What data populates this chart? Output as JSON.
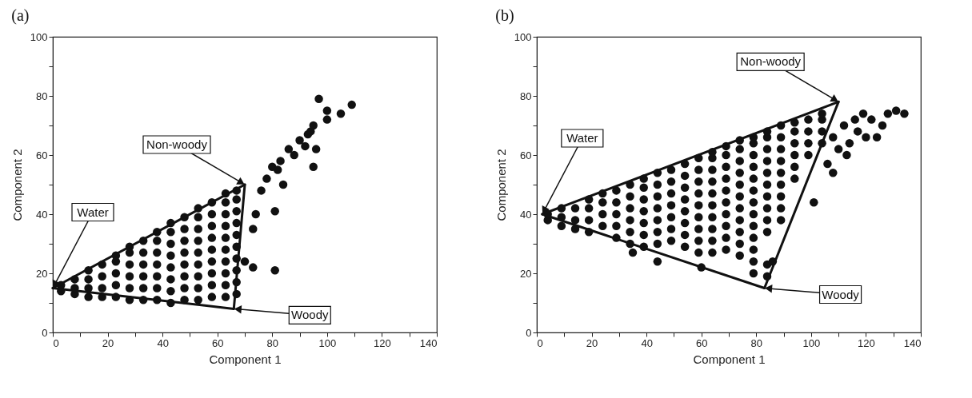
{
  "chart_data": [
    {
      "type": "scatter",
      "title": "(a)",
      "xlabel": "Component 1",
      "ylabel": "Component 2",
      "xlim": [
        0,
        140
      ],
      "ylim": [
        0,
        100
      ],
      "xticks": [
        0,
        {
          "value": 10,
          "label": null
        },
        20,
        {
          "value": 30,
          "label": null
        },
        40,
        {
          "value": 50,
          "label": null
        },
        60,
        {
          "value": 70,
          "label": null
        },
        80,
        {
          "value": 90,
          "label": null
        },
        100,
        {
          "value": 110,
          "label": null
        },
        120,
        {
          "value": 130,
          "label": null
        },
        140
      ],
      "yticks": [
        0,
        {
          "value": 10,
          "label": null
        },
        20,
        {
          "value": 30,
          "label": null
        },
        40,
        {
          "value": 50,
          "label": null
        },
        60,
        {
          "value": 70,
          "label": null
        },
        80,
        {
          "value": 90,
          "label": null
        },
        100
      ],
      "marker": "circle",
      "grid": false,
      "series": [
        {
          "color": "#111111",
          "x": [
            3,
            3,
            8,
            8,
            8,
            13,
            13,
            13,
            13,
            18,
            18,
            18,
            18,
            23,
            23,
            23,
            23,
            23,
            28,
            28,
            28,
            28,
            28,
            28,
            33,
            33,
            33,
            33,
            33,
            33,
            38,
            38,
            38,
            38,
            38,
            38,
            38,
            43,
            43,
            43,
            43,
            43,
            43,
            43,
            43,
            48,
            48,
            48,
            48,
            48,
            48,
            48,
            48,
            53,
            53,
            53,
            53,
            53,
            53,
            53,
            53,
            53,
            58,
            58,
            58,
            58,
            58,
            58,
            58,
            58,
            58,
            63,
            63,
            63,
            63,
            63,
            63,
            63,
            63,
            63,
            63,
            67,
            67,
            67,
            67,
            67,
            67,
            67,
            67,
            67,
            67,
            74,
            73,
            76,
            78,
            80,
            82,
            83,
            84,
            81,
            86,
            88,
            90,
            92,
            93,
            94,
            95,
            96,
            95,
            97,
            100,
            100,
            105,
            109,
            73,
            81,
            70
          ],
          "values": [
            14,
            16,
            13,
            15,
            18,
            12,
            15,
            18,
            21,
            12,
            15,
            19,
            23,
            12,
            16,
            20,
            24,
            26,
            11,
            15,
            19,
            23,
            27,
            29,
            11,
            15,
            19,
            23,
            27,
            31,
            11,
            15,
            19,
            23,
            27,
            31,
            34,
            10,
            14,
            18,
            22,
            26,
            30,
            34,
            37,
            11,
            15,
            19,
            23,
            27,
            31,
            35,
            39,
            11,
            15,
            19,
            23,
            27,
            31,
            35,
            39,
            42,
            12,
            16,
            20,
            24,
            28,
            32,
            36,
            40,
            44,
            12,
            16,
            20,
            24,
            28,
            32,
            36,
            40,
            44,
            47,
            13,
            17,
            21,
            25,
            29,
            33,
            37,
            41,
            45,
            48,
            40,
            35,
            48,
            52,
            56,
            55,
            58,
            50,
            41,
            62,
            60,
            65,
            63,
            67,
            68,
            70,
            62,
            56,
            79,
            72,
            75,
            74,
            77,
            22,
            21,
            24
          ]
        },
        {
          "type": "line",
          "marker": "none",
          "color": "#111111",
          "x": [
            0,
            70
          ],
          "values": [
            15,
            50
          ]
        },
        {
          "type": "line",
          "marker": "none",
          "color": "#111111",
          "x": [
            0,
            66
          ],
          "values": [
            15,
            8
          ]
        },
        {
          "type": "line",
          "marker": "none",
          "color": "#111111",
          "x": [
            66,
            70
          ],
          "values": [
            8,
            50
          ]
        }
      ],
      "annotations": [
        {
          "text": "Water",
          "x": 0,
          "y": 15
        },
        {
          "text": "Non-woody",
          "x": 70,
          "y": 50
        },
        {
          "text": "Woody",
          "x": 66,
          "y": 8
        }
      ]
    },
    {
      "type": "scatter",
      "title": "(b)",
      "xlabel": "Component 1",
      "ylabel": "Component 2",
      "xlim": [
        0,
        140
      ],
      "ylim": [
        0,
        100
      ],
      "xticks": [
        0,
        {
          "value": 10,
          "label": null
        },
        20,
        {
          "value": 30,
          "label": null
        },
        40,
        {
          "value": 50,
          "label": null
        },
        60,
        {
          "value": 70,
          "label": null
        },
        80,
        {
          "value": 90,
          "label": null
        },
        100,
        {
          "value": 110,
          "label": null
        },
        120,
        {
          "value": 130,
          "label": null
        },
        140
      ],
      "yticks": [
        0,
        {
          "value": 10,
          "label": null
        },
        20,
        {
          "value": 30,
          "label": null
        },
        40,
        {
          "value": 50,
          "label": null
        },
        60,
        {
          "value": 70,
          "label": null
        },
        80,
        {
          "value": 90,
          "label": null
        },
        100
      ],
      "marker": "circle",
      "grid": false,
      "series": [
        {
          "color": "#111111",
          "x": [
            4,
            4,
            9,
            9,
            9,
            14,
            14,
            14,
            19,
            19,
            19,
            19,
            24,
            24,
            24,
            24,
            29,
            29,
            29,
            29,
            29,
            34,
            34,
            34,
            34,
            34,
            34,
            39,
            39,
            39,
            39,
            39,
            39,
            39,
            44,
            44,
            44,
            44,
            44,
            44,
            44,
            49,
            49,
            49,
            49,
            49,
            49,
            49,
            54,
            54,
            54,
            54,
            54,
            54,
            54,
            54,
            59,
            59,
            59,
            59,
            59,
            59,
            59,
            59,
            59,
            64,
            64,
            64,
            64,
            64,
            64,
            64,
            64,
            64,
            64,
            69,
            69,
            69,
            69,
            69,
            69,
            69,
            69,
            69,
            69,
            74,
            74,
            74,
            74,
            74,
            74,
            74,
            74,
            74,
            74,
            74,
            79,
            79,
            79,
            79,
            79,
            79,
            79,
            79,
            79,
            79,
            79,
            79,
            79,
            84,
            84,
            84,
            84,
            84,
            84,
            84,
            84,
            84,
            84,
            84,
            84,
            89,
            89,
            89,
            89,
            89,
            89,
            89,
            89,
            89,
            94,
            94,
            94,
            94,
            94,
            94,
            99,
            99,
            99,
            99,
            104,
            104,
            104,
            104,
            108,
            110,
            112,
            114,
            116,
            117,
            119,
            120,
            122,
            124,
            126,
            128,
            131,
            134,
            106,
            108,
            113,
            101,
            86,
            60,
            44,
            35
          ],
          "values": [
            38,
            40,
            36,
            39,
            42,
            35,
            38,
            42,
            34,
            38,
            42,
            45,
            36,
            40,
            44,
            47,
            32,
            36,
            40,
            44,
            48,
            30,
            34,
            38,
            42,
            46,
            50,
            29,
            33,
            37,
            41,
            45,
            49,
            52,
            30,
            34,
            38,
            42,
            46,
            50,
            54,
            31,
            35,
            39,
            43,
            47,
            51,
            55,
            29,
            33,
            37,
            41,
            45,
            49,
            53,
            57,
            27,
            31,
            35,
            39,
            43,
            47,
            51,
            55,
            59,
            27,
            31,
            35,
            39,
            43,
            47,
            51,
            55,
            59,
            61,
            28,
            32,
            36,
            40,
            44,
            48,
            52,
            56,
            60,
            63,
            26,
            30,
            34,
            38,
            42,
            46,
            50,
            54,
            58,
            62,
            65,
            20,
            24,
            28,
            32,
            36,
            40,
            44,
            48,
            52,
            56,
            60,
            64,
            66,
            19,
            23,
            34,
            38,
            42,
            46,
            50,
            54,
            58,
            62,
            66,
            68,
            38,
            42,
            46,
            50,
            54,
            58,
            62,
            66,
            70,
            52,
            56,
            60,
            64,
            68,
            71,
            60,
            64,
            68,
            72,
            64,
            68,
            72,
            74,
            66,
            62,
            70,
            64,
            72,
            68,
            74,
            66,
            72,
            66,
            70,
            74,
            75,
            74,
            57,
            54,
            60,
            44,
            24,
            22,
            24,
            27
          ]
        },
        {
          "type": "line",
          "marker": "none",
          "color": "#111111",
          "x": [
            2,
            110
          ],
          "values": [
            40,
            78
          ]
        },
        {
          "type": "line",
          "marker": "none",
          "color": "#111111",
          "x": [
            2,
            83
          ],
          "values": [
            40,
            15
          ]
        },
        {
          "type": "line",
          "marker": "none",
          "color": "#111111",
          "x": [
            83,
            110
          ],
          "values": [
            15,
            78
          ]
        }
      ],
      "annotations": [
        {
          "text": "Water",
          "x": 2,
          "y": 40
        },
        {
          "text": "Non-woody",
          "x": 110,
          "y": 78
        },
        {
          "text": "Woody",
          "x": 83,
          "y": 15
        }
      ]
    }
  ]
}
